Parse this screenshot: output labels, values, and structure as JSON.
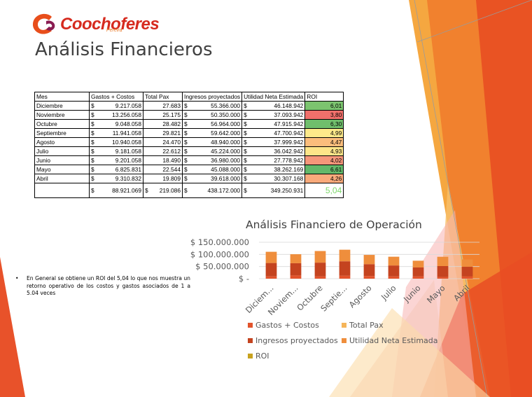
{
  "logo": {
    "text": "Coochoferes",
    "subtext": "Pereira"
  },
  "title": "Análisis Financieros",
  "table": {
    "headers": [
      "Mes",
      "Gastos + Costos",
      "Total Pax",
      "Ingresos proyectados",
      "Utilidad Neta Estimada",
      "ROI"
    ],
    "currency": "$",
    "rows": [
      {
        "mes": "Diciembre",
        "gastos": "9.217.058",
        "pax": "27.683",
        "ingresos": "55.366.000",
        "utilidad": "46.148.942",
        "roi": "6,01",
        "roi_color": "#7cc46f"
      },
      {
        "mes": "Noviembre",
        "gastos": "13.256.058",
        "pax": "25.175",
        "ingresos": "50.350.000",
        "utilidad": "37.093.942",
        "roi": "3,80",
        "roi_color": "#f0706b"
      },
      {
        "mes": "Octubre",
        "gastos": "9.048.058",
        "pax": "28.482",
        "ingresos": "56.964.000",
        "utilidad": "47.915.942",
        "roi": "6,30",
        "roi_color": "#70be6c"
      },
      {
        "mes": "Septiembre",
        "gastos": "11.941.058",
        "pax": "29.821",
        "ingresos": "59.642.000",
        "utilidad": "47.700.942",
        "roi": "4,99",
        "roi_color": "#fde98a"
      },
      {
        "mes": "Agosto",
        "gastos": "10.940.058",
        "pax": "24.470",
        "ingresos": "48.940.000",
        "utilidad": "37.999.942",
        "roi": "4,47",
        "roi_color": "#fbbd7c"
      },
      {
        "mes": "Julio",
        "gastos": "9.181.058",
        "pax": "22.612",
        "ingresos": "45.224.000",
        "utilidad": "36.042.942",
        "roi": "4,93",
        "roi_color": "#fde589"
      },
      {
        "mes": "Junio",
        "gastos": "9.201.058",
        "pax": "18.490",
        "ingresos": "36.980.000",
        "utilidad": "27.778.942",
        "roi": "4,02",
        "roi_color": "#f6967a"
      },
      {
        "mes": "Mayo",
        "gastos": "6.825.831",
        "pax": "22.544",
        "ingresos": "45.088.000",
        "utilidad": "38.262.169",
        "roi": "6,61",
        "roi_color": "#63b86a"
      },
      {
        "mes": "Abril",
        "gastos": "9.310.832",
        "pax": "19.809",
        "ingresos": "39.618.000",
        "utilidad": "30.307.168",
        "roi": "4,26",
        "roi_color": "#f9aa7b"
      }
    ],
    "totals": {
      "gastos": "88.921.069",
      "pax": "219.086",
      "ingresos": "438.172.000",
      "utilidad": "349.250.931",
      "roi": "5,04"
    }
  },
  "bullet_text": "En General se obtiene un ROI del 5,04 lo que nos muestra un retorno operativo de los costos y gastos asociados de 1 a 5.04 veces",
  "chart_title": "Análisis Financiero de Operación",
  "chart_data": {
    "type": "bar",
    "stacked": true,
    "title": "Análisis Financiero de Operación",
    "categories": [
      "Diciem...",
      "Noviem...",
      "Octubre",
      "Septie...",
      "Agosto",
      "Julio",
      "Junio",
      "Mayo",
      "Abril"
    ],
    "y_ticks": [
      "$ 150.000.000",
      "$ 100.000.000",
      "$ 50.000.000",
      "$ -"
    ],
    "y_tick_values": [
      150000000,
      100000000,
      50000000,
      0
    ],
    "ylim": [
      0,
      150000000
    ],
    "grid": true,
    "legend_position": "bottom",
    "series": [
      {
        "name": "Gastos + Costos",
        "color": "#e2542c",
        "values": [
          9217058,
          13256058,
          9048058,
          11941058,
          10940058,
          9181058,
          9201058,
          6825831,
          9310832
        ]
      },
      {
        "name": "Total Pax",
        "color": "#f5b55a",
        "values": [
          27683,
          25175,
          28482,
          29821,
          24470,
          22612,
          18490,
          22544,
          19809
        ]
      },
      {
        "name": "Ingresos proyectados",
        "color": "#c4431f",
        "values": [
          55366000,
          50350000,
          56964000,
          59642000,
          48940000,
          45224000,
          36980000,
          45088000,
          39618000
        ]
      },
      {
        "name": "Utilidad Neta Estimada",
        "color": "#ef8e3c",
        "values": [
          46148942,
          37093942,
          47915942,
          47700942,
          37999942,
          36042942,
          27778942,
          38262169,
          30307168
        ]
      },
      {
        "name": "ROI",
        "color": "#c8a21e",
        "values": [
          6.01,
          3.8,
          6.3,
          4.99,
          4.47,
          4.93,
          4.02,
          6.61,
          4.26
        ]
      }
    ]
  }
}
